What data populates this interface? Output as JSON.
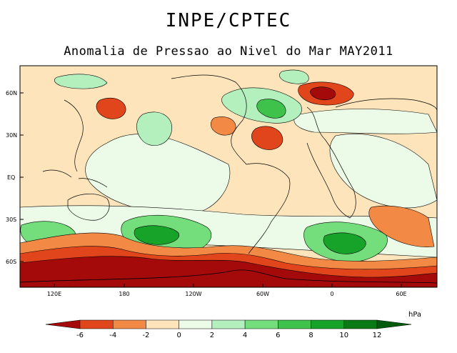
{
  "header": {
    "title": "INPE/CPTEC",
    "subtitle": "Anomalia de Pressao ao Nivel do Mar MAY2011"
  },
  "map": {
    "lat_ticks": [
      "60N",
      "30N",
      "EQ",
      "30S",
      "60S"
    ],
    "lon_ticks": [
      "120E",
      "180",
      "120W",
      "60W",
      "0",
      "60E"
    ]
  },
  "colorbar": {
    "unit": "hPa",
    "levels": [
      "-6",
      "-4",
      "-2",
      "0",
      "2",
      "4",
      "6",
      "8",
      "10",
      "12"
    ],
    "colors": [
      "#a50a0a",
      "#e0451b",
      "#f28a45",
      "#fde4bb",
      "#ecfbe8",
      "#b4f0be",
      "#74dd7c",
      "#3fc24c",
      "#17a32a",
      "#0a7a15",
      "#005c0c"
    ]
  }
}
